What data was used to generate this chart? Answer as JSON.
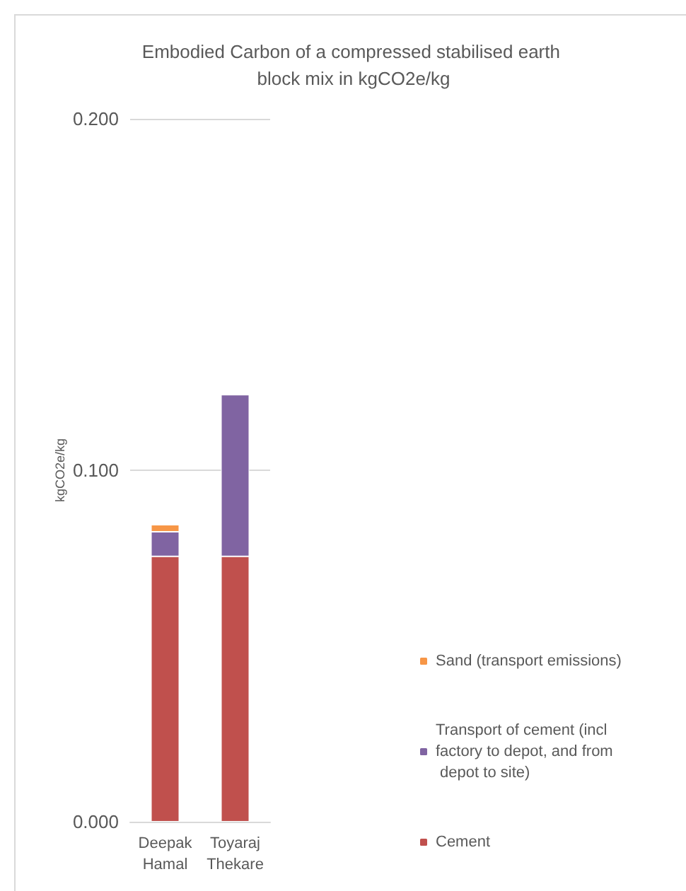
{
  "chart_data": {
    "type": "bar",
    "title": "Embodied Carbon of a compressed stabilised earth block mix in kgCO2e/kg",
    "ylabel": "kgCO2e/kg",
    "categories": [
      "Deepak Hamal",
      "Toyaraj Thekare"
    ],
    "stacked": true,
    "series": [
      {
        "name": "Cement",
        "color": "#c0504d",
        "values": [
          0.0755,
          0.0755
        ]
      },
      {
        "name": "Transport of cement (incl factory to depot, and from depot to site)",
        "color": "#8064a2",
        "values": [
          0.007,
          0.046
        ]
      },
      {
        "name": "Sand (transport emissions)",
        "color": "#f79646",
        "values": [
          0.002,
          null
        ]
      }
    ],
    "ylim": [
      0,
      0.2
    ],
    "yticks": [
      {
        "value": 0,
        "label": "0.000"
      },
      {
        "value": 0.1,
        "label": "0.100"
      },
      {
        "value": 0.2,
        "label": "0.200"
      }
    ],
    "grid": "y",
    "legend": "right"
  }
}
